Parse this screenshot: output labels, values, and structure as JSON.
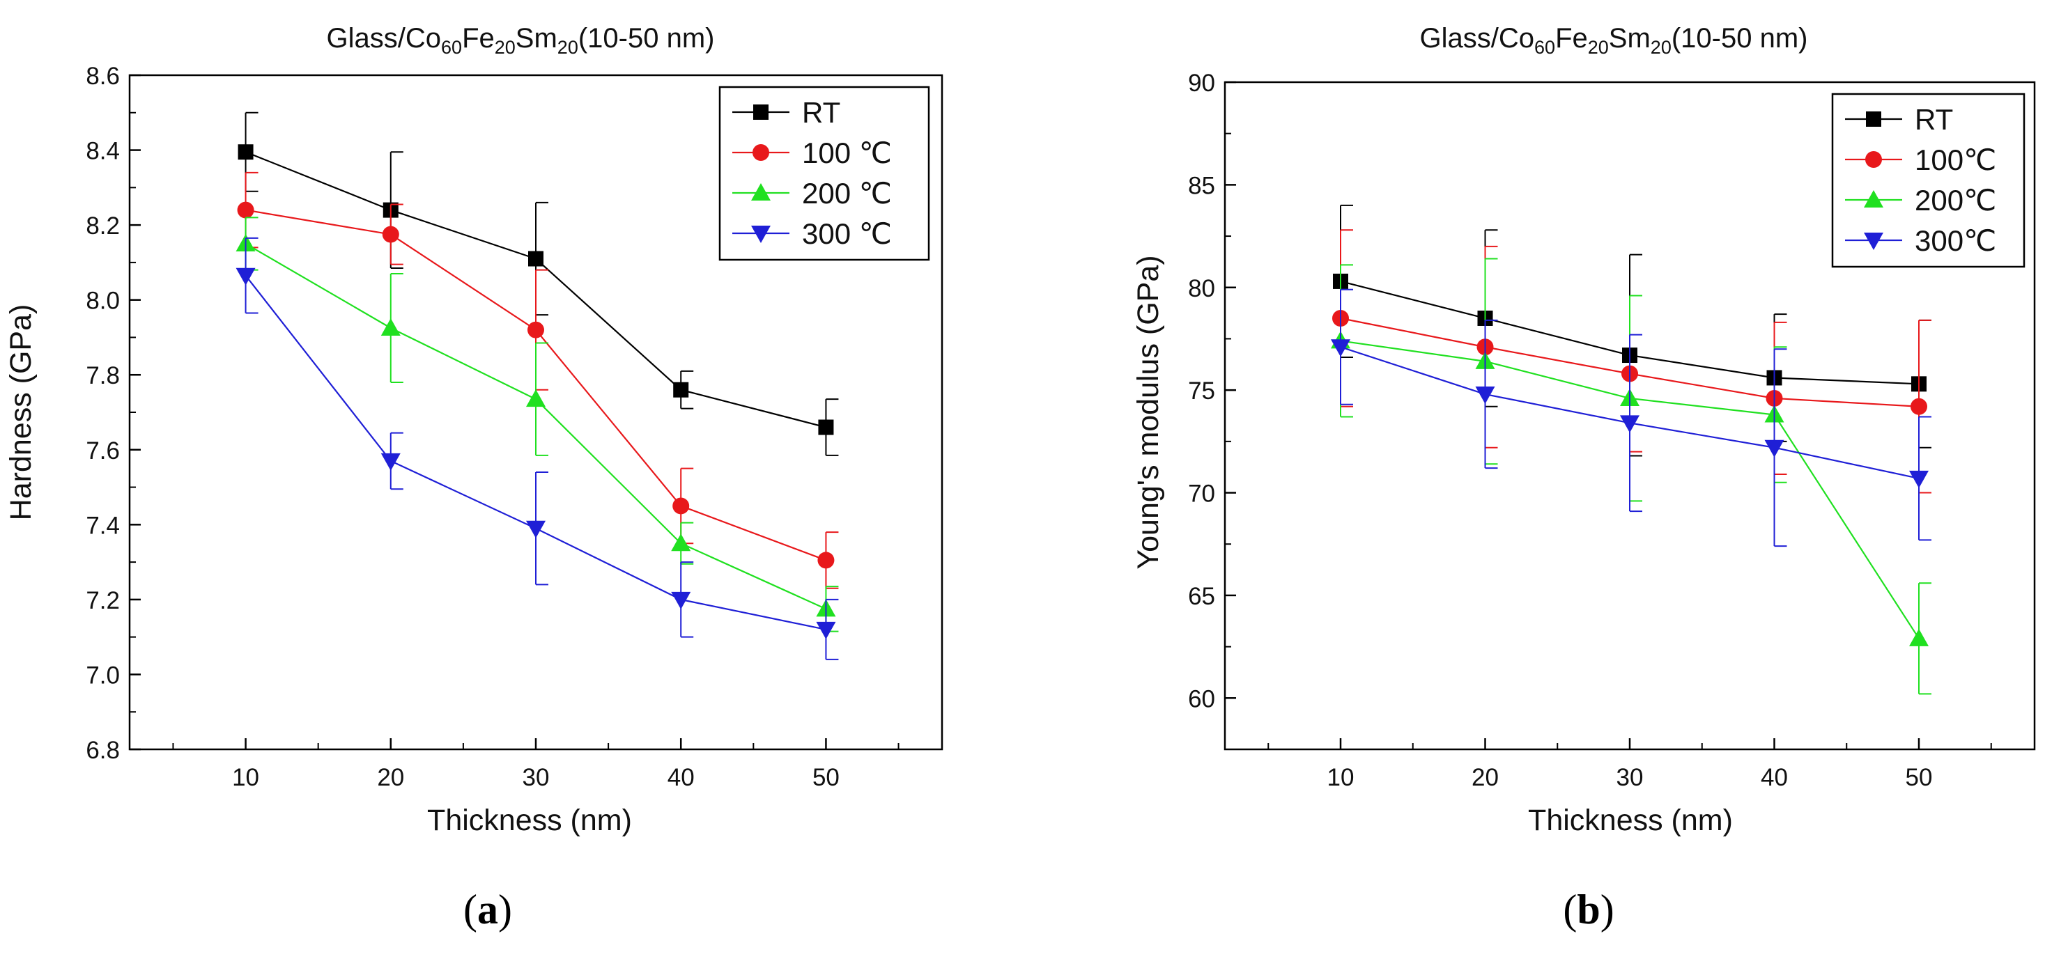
{
  "panels": [
    {
      "panel_label": "a",
      "chart_data": {
        "type": "line",
        "title_parts": [
          "Glass/Co",
          "60",
          "Fe",
          "20",
          "Sm",
          "20",
          "(10-50 nm)"
        ],
        "xlabel": "Thickness (nm)",
        "ylabel": "Hardness (GPa)",
        "x": [
          10,
          20,
          30,
          40,
          50
        ],
        "xticks": [
          "10",
          "20",
          "30",
          "40",
          "50"
        ],
        "xlim": [
          2,
          58
        ],
        "ylim": [
          6.8,
          8.6
        ],
        "yticks": [
          "6.8",
          "7.0",
          "7.2",
          "7.4",
          "7.6",
          "7.8",
          "8.0",
          "8.2",
          "8.4",
          "8.6"
        ],
        "legend_position": "top-right",
        "series": [
          {
            "name": "RT",
            "color": "#000000",
            "marker": "square",
            "values": [
              8.395,
              8.24,
              8.11,
              7.76,
              7.66
            ],
            "errors": [
              0.105,
              0.155,
              0.15,
              0.05,
              0.075
            ]
          },
          {
            "name": "100 ℃",
            "color": "#e8181b",
            "marker": "circle",
            "values": [
              8.24,
              8.175,
              7.92,
              7.45,
              7.305
            ],
            "errors": [
              0.1,
              0.08,
              0.16,
              0.1,
              0.075
            ]
          },
          {
            "name": "200 ℃",
            "color": "#20e020",
            "marker": "triangle-up",
            "values": [
              8.15,
              7.925,
              7.735,
              7.35,
              7.175
            ],
            "errors": [
              0.07,
              0.145,
              0.15,
              0.055,
              0.06
            ]
          },
          {
            "name": "300 ℃",
            "color": "#1f1fd6",
            "marker": "triangle-down",
            "values": [
              8.065,
              7.57,
              7.39,
              7.2,
              7.12
            ],
            "errors": [
              0.1,
              0.075,
              0.15,
              0.1,
              0.08
            ]
          }
        ]
      }
    },
    {
      "panel_label": "b",
      "chart_data": {
        "type": "line",
        "title_parts": [
          "Glass/Co",
          "60",
          "Fe",
          "20",
          "Sm",
          "20",
          "(10-50 nm)"
        ],
        "xlabel": "Thickness (nm)",
        "ylabel": "Young's modulus (GPa)",
        "x": [
          10,
          20,
          30,
          40,
          50
        ],
        "xticks": [
          "10",
          "20",
          "30",
          "40",
          "50"
        ],
        "xlim": [
          2,
          58
        ],
        "ylim": [
          57.5,
          90
        ],
        "yticks": [
          "60",
          "65",
          "70",
          "75",
          "80",
          "85",
          "90"
        ],
        "legend_position": "top-right",
        "series": [
          {
            "name": "RT",
            "color": "#000000",
            "marker": "square",
            "values": [
              80.3,
              78.5,
              76.7,
              75.6,
              75.3
            ],
            "errors": [
              3.7,
              4.3,
              4.9,
              3.1,
              3.1
            ]
          },
          {
            "name": "100℃",
            "color": "#e8181b",
            "marker": "circle",
            "values": [
              78.5,
              77.1,
              75.8,
              74.6,
              74.2
            ],
            "errors": [
              4.3,
              4.9,
              3.8,
              3.7,
              4.2
            ]
          },
          {
            "name": "200℃",
            "color": "#20e020",
            "marker": "triangle-up",
            "values": [
              77.4,
              76.4,
              74.6,
              73.8,
              62.9
            ],
            "errors": [
              3.7,
              5.0,
              5.0,
              3.3,
              2.7
            ]
          },
          {
            "name": "300℃",
            "color": "#1f1fd6",
            "marker": "triangle-down",
            "values": [
              77.1,
              74.8,
              73.4,
              72.2,
              70.7
            ],
            "errors": [
              2.8,
              3.6,
              4.3,
              4.8,
              3.0
            ]
          }
        ]
      }
    }
  ]
}
